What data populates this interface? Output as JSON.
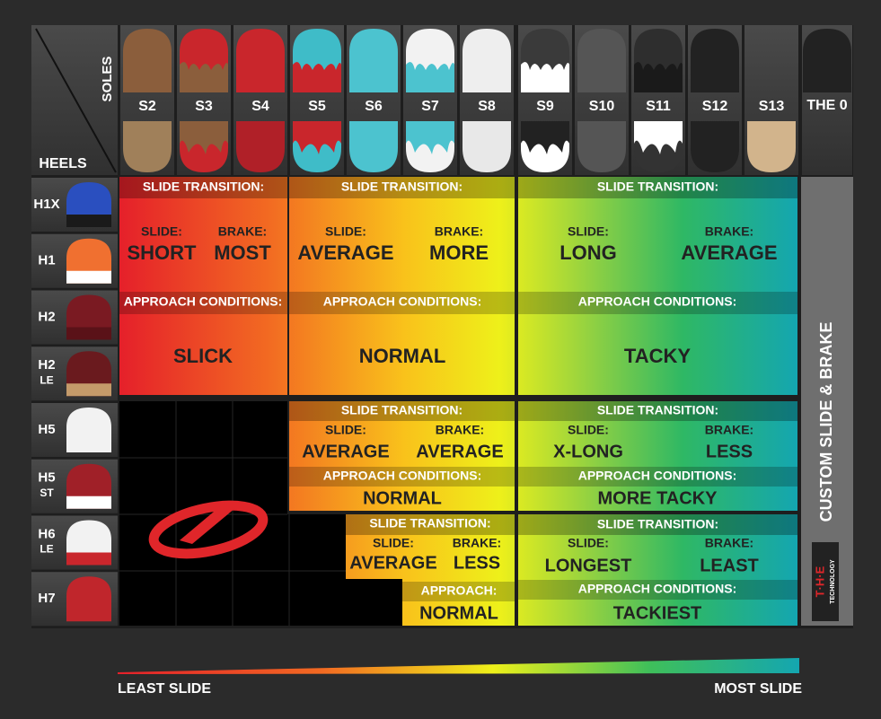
{
  "corner": {
    "soles": "SOLES",
    "heels": "HEELS"
  },
  "soles": [
    "S2",
    "S3",
    "S4",
    "S5",
    "S6",
    "S7",
    "S8",
    "S9",
    "S10",
    "S11",
    "S12",
    "S13",
    "THE 0"
  ],
  "heels": [
    {
      "name": "H1X"
    },
    {
      "name": "H1"
    },
    {
      "name": "H2"
    },
    {
      "name": "H2",
      "sub": "LE"
    },
    {
      "name": "H5"
    },
    {
      "name": "H5",
      "sub": "ST"
    },
    {
      "name": "H6",
      "sub": "LE"
    },
    {
      "name": "H7"
    }
  ],
  "zones": [
    {
      "header": "SLIDE TRANSITION:",
      "slide_label": "SLIDE:",
      "slide": "SHORT",
      "brake_label": "BRAKE:",
      "brake": "MOST",
      "approach_header": "APPROACH CONDITIONS:",
      "approach": "SLICK"
    },
    {
      "header": "SLIDE TRANSITION:",
      "slide_label": "SLIDE:",
      "slide": "AVERAGE",
      "brake_label": "BRAKE:",
      "brake": "MORE",
      "approach_header": "APPROACH CONDITIONS:",
      "approach": "NORMAL"
    },
    {
      "header": "SLIDE TRANSITION:",
      "slide_label": "SLIDE:",
      "slide": "LONG",
      "brake_label": "BRAKE:",
      "brake": "AVERAGE",
      "approach_header": "APPROACH CONDITIONS:",
      "approach": "TACKY"
    },
    {
      "header": "SLIDE TRANSITION:",
      "slide_label": "SLIDE:",
      "slide": "AVERAGE",
      "brake_label": "BRAKE:",
      "brake": "AVERAGE",
      "approach_header": "APPROACH CONDITIONS:",
      "approach": "NORMAL"
    },
    {
      "header": "SLIDE TRANSITION:",
      "slide_label": "SLIDE:",
      "slide": "X-LONG",
      "brake_label": "BRAKE:",
      "brake": "LESS",
      "approach_header": "APPROACH CONDITIONS:",
      "approach": "MORE TACKY"
    },
    {
      "header": "SLIDE TRANSITION:",
      "slide_label": "SLIDE:",
      "slide": "AVERAGE",
      "brake_label": "BRAKE:",
      "brake": "LESS",
      "approach_header": "APPROACH:",
      "approach": "NORMAL"
    },
    {
      "header": "SLIDE TRANSITION:",
      "slide_label": "SLIDE:",
      "slide": "LONGEST",
      "brake_label": "BRAKE:",
      "brake": "LEAST",
      "approach_header": "APPROACH CONDITIONS:",
      "approach": "TACKIEST"
    }
  ],
  "side_label": "CUSTOM SLIDE & BRAKE",
  "logo": {
    "mark": "T·H·E",
    "word": "TECHNOLOGY"
  },
  "scale": {
    "left": "LEAST SLIDE",
    "right": "MOST SLIDE"
  }
}
